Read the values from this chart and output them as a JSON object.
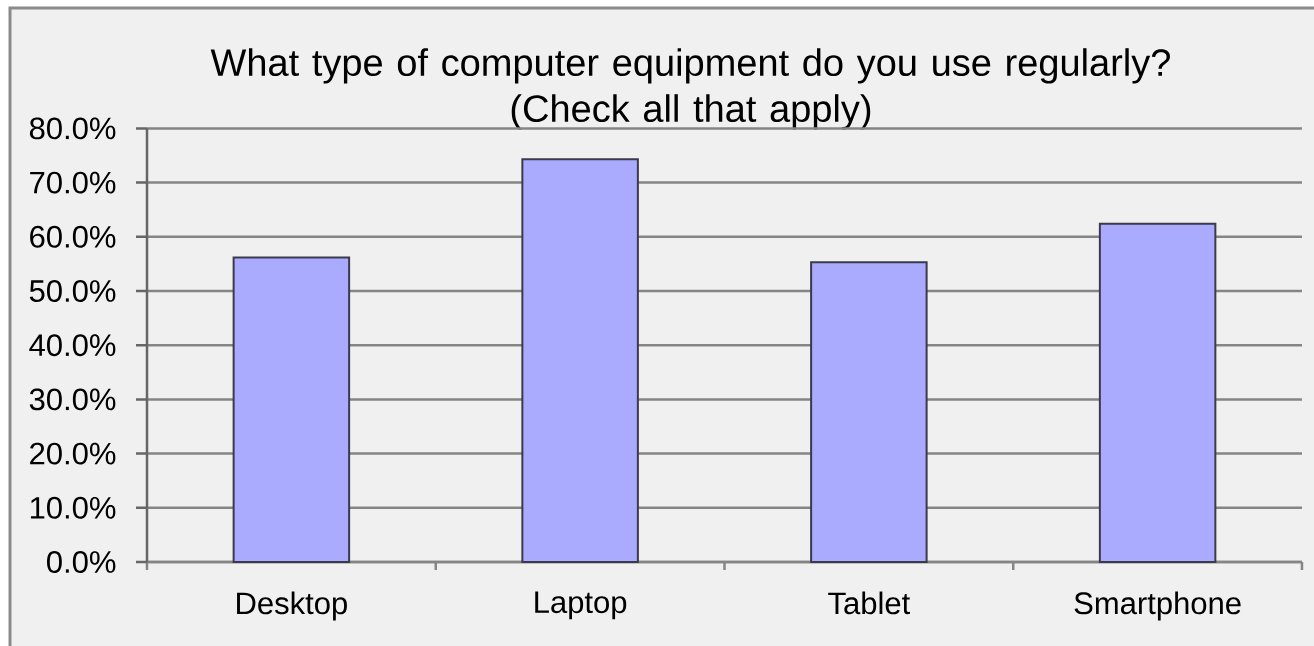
{
  "chart_data": {
    "type": "bar",
    "title": "What type of computer equipment do you use regularly? (Check all that apply)",
    "categories": [
      "Desktop",
      "Laptop",
      "Tablet",
      "Smartphone"
    ],
    "values": [
      56.2,
      74.3,
      55.3,
      62.4
    ],
    "color": "#aaaaff",
    "ylim": [
      0,
      80
    ],
    "yticks": [
      {
        "value": 0,
        "label": "0.0%"
      },
      {
        "value": 10,
        "label": "10.0%"
      },
      {
        "value": 20,
        "label": "20.0%"
      },
      {
        "value": 30,
        "label": "30.0%"
      },
      {
        "value": 40,
        "label": "40.0%"
      },
      {
        "value": 50,
        "label": "50.0%"
      },
      {
        "value": 60,
        "label": "60.0%"
      },
      {
        "value": 70,
        "label": "70.0%"
      },
      {
        "value": 80,
        "label": "80.0%"
      }
    ],
    "grid": "y"
  }
}
